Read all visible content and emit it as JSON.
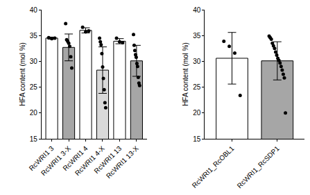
{
  "chart_data": [
    {
      "type": "bar",
      "y_label": "HFA content (mol %)",
      "categories": [
        "RcWRI1 3",
        "RcWRI1 3-X",
        "RcWRI1 4",
        "RcWRI1 4-X",
        "RcWRI1 13",
        "RcWRI1 13-X"
      ],
      "values": [
        34.5,
        32.7,
        36.0,
        28.3,
        33.9,
        30.1
      ],
      "errors": [
        0.2,
        2.6,
        0.5,
        4.5,
        0.5,
        3.0
      ],
      "colors": [
        "#ffffff",
        "#a6a6a6",
        "#ffffff",
        "#d9d9d9",
        "#ffffff",
        "#a6a6a6"
      ],
      "points": [
        [
          34.6,
          34.4,
          34.5
        ],
        [
          37.3,
          34.2,
          33.9,
          33.5,
          32.9,
          30.9,
          28.7
        ],
        [
          36.6,
          35.7,
          35.9
        ],
        [
          34.5,
          33.8,
          33.2,
          31.5,
          28.9,
          26.7,
          24.5,
          22.0,
          21.0
        ],
        [
          34.5,
          33.8,
          33.6
        ],
        [
          35.2,
          33.1,
          32.1,
          31.3,
          30.8,
          29.6,
          29.0,
          26.9,
          25.8,
          25.3
        ]
      ],
      "ylim": [
        15,
        40
      ],
      "yticks": [
        15,
        20,
        25,
        30,
        35,
        40
      ]
    },
    {
      "type": "bar",
      "y_label": "HFA content (mol %)",
      "categories": [
        "RcWRI1_RcOBL1",
        "RcWRI1_RcSDP1"
      ],
      "values": [
        30.6,
        30.1
      ],
      "errors": [
        5.0,
        3.7
      ],
      "colors": [
        "#ffffff",
        "#a6a6a6"
      ],
      "points": [
        [
          33.9,
          32.9,
          31.6,
          23.4
        ],
        [
          34.9,
          34.6,
          34.3,
          33.5,
          33.0,
          32.5,
          31.8,
          31.2,
          30.6,
          30.2,
          29.7,
          29.0,
          28.3,
          27.5,
          26.8,
          20.0
        ]
      ],
      "ylim": [
        15,
        40
      ],
      "yticks": [
        15,
        20,
        25,
        30,
        35,
        40
      ]
    }
  ]
}
